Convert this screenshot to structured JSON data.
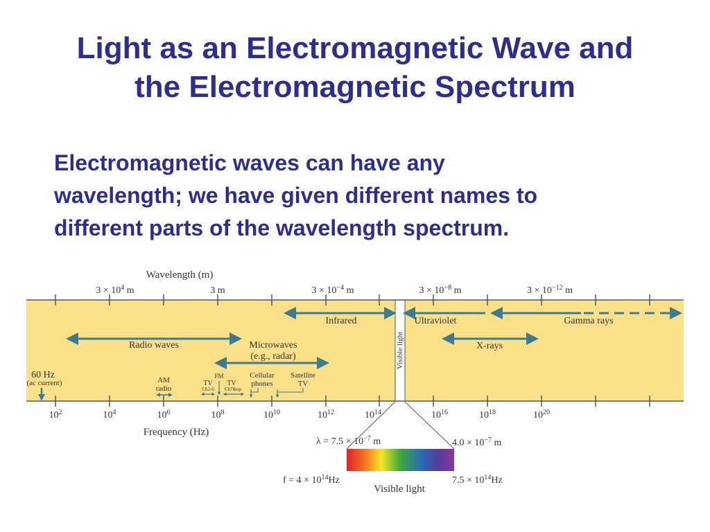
{
  "slide": {
    "title_line1": "Light as an Electromagnetic Wave and",
    "title_line2": "the Electromagnetic Spectrum",
    "body_line1": "Electromagnetic waves can have any",
    "body_line2": "wavelength; we have given different names to",
    "body_line3": "different parts of the wavelength spectrum."
  },
  "colors": {
    "title": "#2e2e8f",
    "band": "#fbe08a",
    "arrow": "#3e7a90"
  },
  "diagram": {
    "wavelength_axis_label": "Wavelength (m)",
    "wavelength_ticks": [
      {
        "base": "3 × 10",
        "exp": "4",
        "unit": " m"
      },
      {
        "base": "3 m",
        "exp": "",
        "unit": ""
      },
      {
        "base": "3 × 10",
        "exp": "−4",
        "unit": " m"
      },
      {
        "base": "3 × 10",
        "exp": "−8",
        "unit": " m"
      },
      {
        "base": "3 × 10",
        "exp": "−12",
        "unit": " m"
      }
    ],
    "frequency_axis_label": "Frequency (Hz)",
    "frequency_ticks": [
      {
        "base": "10",
        "exp": "2"
      },
      {
        "base": "10",
        "exp": "4"
      },
      {
        "base": "10",
        "exp": "6"
      },
      {
        "base": "10",
        "exp": "8"
      },
      {
        "base": "10",
        "exp": "10"
      },
      {
        "base": "10",
        "exp": "12"
      },
      {
        "base": "10",
        "exp": "14"
      },
      {
        "base": "10",
        "exp": "16"
      },
      {
        "base": "10",
        "exp": "18"
      },
      {
        "base": "10",
        "exp": "20"
      }
    ],
    "regions": {
      "infrared": "Infrared",
      "ultraviolet": "Ultraviolet",
      "gamma": "Gamma rays",
      "radio": "Radio waves",
      "microwaves": "Microwaves",
      "microwaves_example": "(e.g., radar)",
      "xrays": "X-rays",
      "visible_vertical": "Visible light"
    },
    "markers": {
      "hz60": "60 Hz",
      "ac": "(ac current)",
      "am1": "AM",
      "am2": "radio",
      "fm": "FM",
      "tv1": "TV",
      "tv1_sub": "Ch2-6",
      "tv2": "TV",
      "tv2_sub": "Ch7&up",
      "cell1": "Cellular",
      "cell2": "phones",
      "sat1": "Satellite",
      "sat2": "TV"
    },
    "visible_detail": {
      "lambda_left_prefix": "λ = 7.5 × 10",
      "lambda_left_exp": "−7",
      "lambda_left_unit": " m",
      "lambda_right_prefix": "4.0 × 10",
      "lambda_right_exp": "−7",
      "lambda_right_unit": " m",
      "f_left_prefix": "f = 4 × 10",
      "f_left_exp": "14",
      "f_left_unit": "Hz",
      "f_right_prefix": "7.5 × 10",
      "f_right_exp": "14",
      "f_right_unit": "Hz",
      "caption": "Visible light"
    }
  }
}
